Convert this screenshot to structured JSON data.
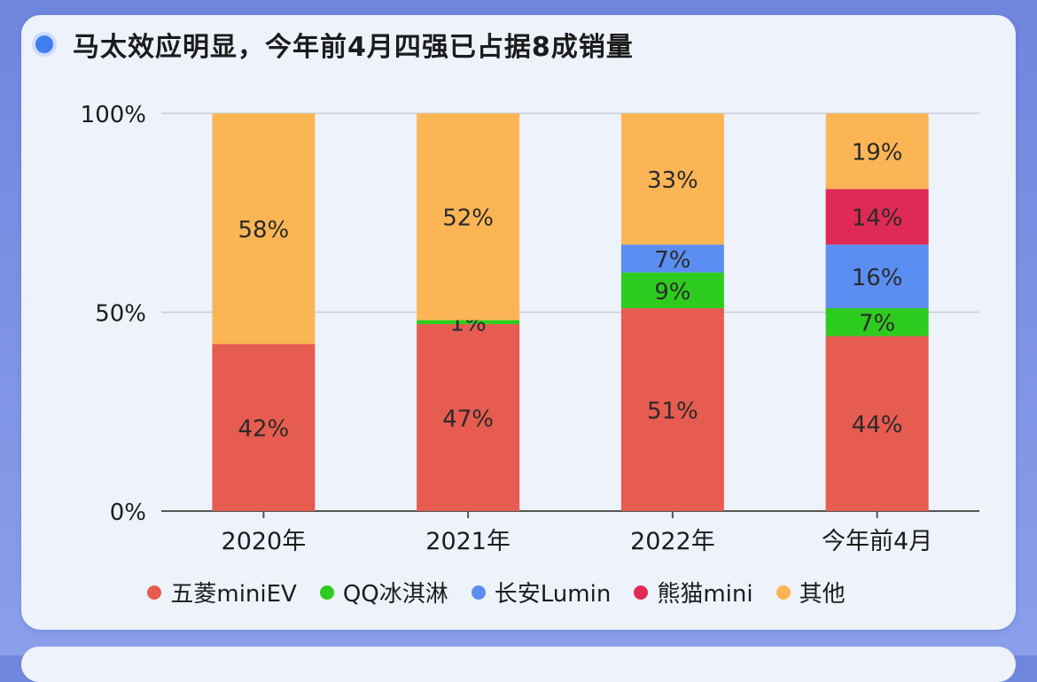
{
  "title": "马太效应明显，今年前4月四强已占据8成销量",
  "colors": {
    "五菱miniEV": "#e65c50",
    "QQ冰淇淋": "#2ecb1f",
    "长安Lumin": "#5b8ef2",
    "熊猫mini": "#df2a56",
    "其他": "#fbb555",
    "title_dot": "#3f7ef0"
  },
  "chart_data": {
    "type": "bar",
    "stacked": true,
    "categories": [
      "2020年",
      "2021年",
      "2022年",
      "今年前4月"
    ],
    "y_ticks": [
      "0%",
      "50%",
      "100%"
    ],
    "ylim": [
      0,
      100
    ],
    "series": [
      {
        "name": "五菱miniEV",
        "values": [
          42,
          47,
          51,
          44
        ],
        "labels": [
          "42%",
          "47%",
          "51%",
          "44%"
        ]
      },
      {
        "name": "QQ冰淇淋",
        "values": [
          0,
          1,
          9,
          7
        ],
        "labels": [
          "",
          "1%",
          "9%",
          "7%"
        ]
      },
      {
        "name": "长安Lumin",
        "values": [
          0,
          0,
          7,
          16
        ],
        "labels": [
          "",
          "",
          "7%",
          "16%"
        ]
      },
      {
        "name": "熊猫mini",
        "values": [
          0,
          0,
          0,
          14
        ],
        "labels": [
          "",
          "",
          "",
          "14%"
        ]
      },
      {
        "name": "其他",
        "values": [
          58,
          52,
          33,
          19
        ],
        "labels": [
          "58%",
          "52%",
          "33%",
          "19%"
        ]
      }
    ],
    "legend": [
      "五菱miniEV",
      "QQ冰淇淋",
      "长安Lumin",
      "熊猫mini",
      "其他"
    ],
    "legend_position": "bottom",
    "grid": true
  }
}
